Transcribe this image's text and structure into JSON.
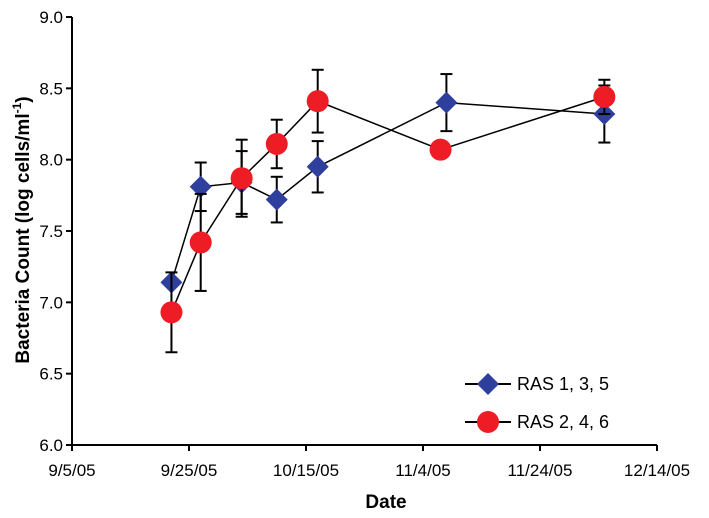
{
  "chart_data": {
    "type": "scatter",
    "xlabel": "Date",
    "ylabel": "Bacteria Count (log cells/ml",
    "ylabel_sup": "-1",
    "ylabel_close": ")",
    "xlim": [
      "2005-09-05",
      "2005-12-14"
    ],
    "ylim": [
      6.0,
      9.0
    ],
    "x_ticks": [
      "9/5/05",
      "9/25/05",
      "10/15/05",
      "11/4/05",
      "11/24/05",
      "12/14/05"
    ],
    "y_ticks": [
      "6.0",
      "6.5",
      "7.0",
      "7.5",
      "8.0",
      "8.5",
      "9.0"
    ],
    "legend_position": "bottom-right",
    "series": [
      {
        "name": "RAS 1, 3, 5",
        "marker": "diamond",
        "color": "#2E3F9E",
        "points": [
          {
            "x": "2005-09-22",
            "y": 7.14,
            "err": 0.0
          },
          {
            "x": "2005-09-27",
            "y": 7.81,
            "err": 0.17
          },
          {
            "x": "2005-10-04",
            "y": 7.84,
            "err": 0.22
          },
          {
            "x": "2005-10-10",
            "y": 7.72,
            "err": 0.16
          },
          {
            "x": "2005-10-17",
            "y": 7.95,
            "err": 0.18
          },
          {
            "x": "2005-11-08",
            "y": 8.4,
            "err": 0.2
          },
          {
            "x": "2005-12-05",
            "y": 8.32,
            "err": 0.2
          }
        ]
      },
      {
        "name": "RAS 2, 4, 6",
        "marker": "circle",
        "color": "#EE1C24",
        "points": [
          {
            "x": "2005-09-22",
            "y": 6.93,
            "err": 0.28
          },
          {
            "x": "2005-09-27",
            "y": 7.42,
            "err": 0.34
          },
          {
            "x": "2005-10-04",
            "y": 7.87,
            "err": 0.27
          },
          {
            "x": "2005-10-10",
            "y": 8.11,
            "err": 0.17
          },
          {
            "x": "2005-10-17",
            "y": 8.41,
            "err": 0.22
          },
          {
            "x": "2005-11-07",
            "y": 8.07,
            "err": 0.0
          },
          {
            "x": "2005-12-05",
            "y": 8.44,
            "err": 0.12
          }
        ]
      }
    ]
  }
}
